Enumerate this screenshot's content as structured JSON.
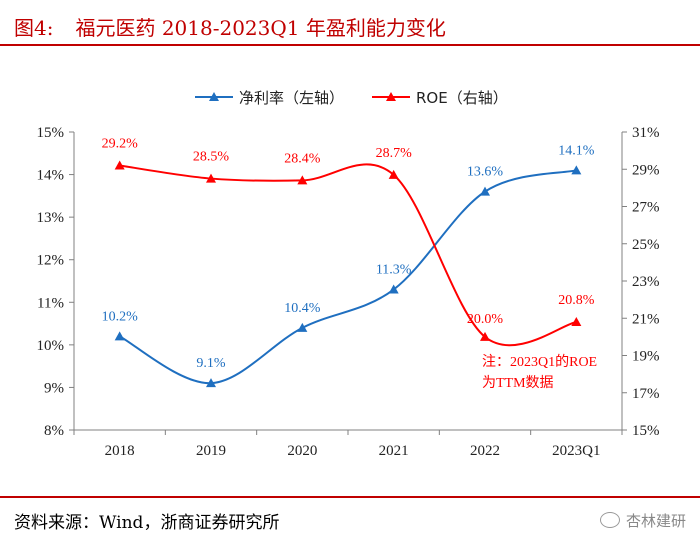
{
  "figure": {
    "label": "图4:",
    "title": "福元医药 2018-2023Q1 年盈利能力变化",
    "source": "资料来源：Wind，浙商证券研究所",
    "brand": "杏林建研"
  },
  "chart_data": {
    "type": "line",
    "categories": [
      "2018",
      "2019",
      "2020",
      "2021",
      "2022",
      "2023Q1"
    ],
    "series": [
      {
        "name": "净利率（左轴）",
        "axis": "left",
        "color": "#1f6fc0",
        "marker": "triangle",
        "values": [
          10.2,
          9.1,
          10.4,
          11.3,
          13.6,
          14.1
        ],
        "labels": [
          "10.2%",
          "9.1%",
          "10.4%",
          "11.3%",
          "13.6%",
          "14.1%"
        ]
      },
      {
        "name": "ROE（右轴）",
        "axis": "right",
        "color": "#ff0000",
        "marker": "triangle",
        "values": [
          29.2,
          28.5,
          28.4,
          28.7,
          20.0,
          20.8
        ],
        "labels": [
          "29.2%",
          "28.5%",
          "28.4%",
          "28.7%",
          "20.0%",
          "20.8%"
        ]
      }
    ],
    "left_axis": {
      "ylim": [
        8,
        15
      ],
      "ticks": [
        8,
        9,
        10,
        11,
        12,
        13,
        14,
        15
      ],
      "tick_labels": [
        "8%",
        "9%",
        "10%",
        "11%",
        "12%",
        "13%",
        "14%",
        "15%"
      ]
    },
    "right_axis": {
      "ylim": [
        15,
        31
      ],
      "ticks": [
        15,
        17,
        19,
        21,
        23,
        25,
        27,
        29,
        31
      ],
      "tick_labels": [
        "15%",
        "17%",
        "19%",
        "21%",
        "23%",
        "25%",
        "27%",
        "29%",
        "31%"
      ]
    },
    "annotation": {
      "lines": [
        "注：2023Q1的ROE",
        "为TTM数据"
      ],
      "color": "#ff0000"
    },
    "legend_position": "top-center",
    "grid": false
  }
}
